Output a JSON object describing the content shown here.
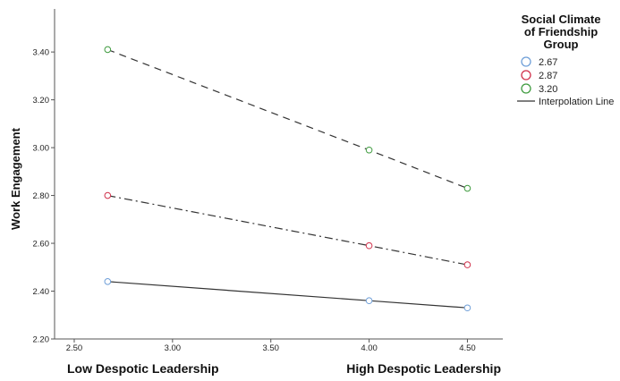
{
  "chart_data": {
    "type": "line",
    "ylabel": "Work Engagement",
    "xlabel": "",
    "x_ticks": [
      "2.50",
      "3.00",
      "3.50",
      "4.00",
      "4.50"
    ],
    "y_ticks": [
      "2.20",
      "2.40",
      "2.60",
      "2.80",
      "3.00",
      "3.20",
      "3.40"
    ],
    "xlim": [
      2.4,
      4.68
    ],
    "ylim": [
      2.2,
      3.58
    ],
    "x_annotations": {
      "low": "Low  Despotic Leadership",
      "high": "High  Despotic Leadership"
    },
    "legend": {
      "title_lines": [
        "Social Climate",
        "of Friendship",
        "Group"
      ],
      "placement": "top-right",
      "interpolation_label": "Interpolation Line"
    },
    "series": [
      {
        "name": "2.67",
        "color": "#6f9fd8",
        "line_style": "solid",
        "points": [
          {
            "x": 2.67,
            "y": 2.44
          },
          {
            "x": 4.0,
            "y": 2.36
          },
          {
            "x": 4.5,
            "y": 2.33
          }
        ]
      },
      {
        "name": "2.87",
        "color": "#d0314b",
        "line_style": "dashdot",
        "points": [
          {
            "x": 2.67,
            "y": 2.8
          },
          {
            "x": 4.0,
            "y": 2.59
          },
          {
            "x": 4.5,
            "y": 2.51
          }
        ]
      },
      {
        "name": "3.20",
        "color": "#3f9b3f",
        "line_style": "dashed",
        "points": [
          {
            "x": 2.67,
            "y": 3.41
          },
          {
            "x": 4.0,
            "y": 2.99
          },
          {
            "x": 4.5,
            "y": 2.83
          }
        ]
      }
    ]
  }
}
